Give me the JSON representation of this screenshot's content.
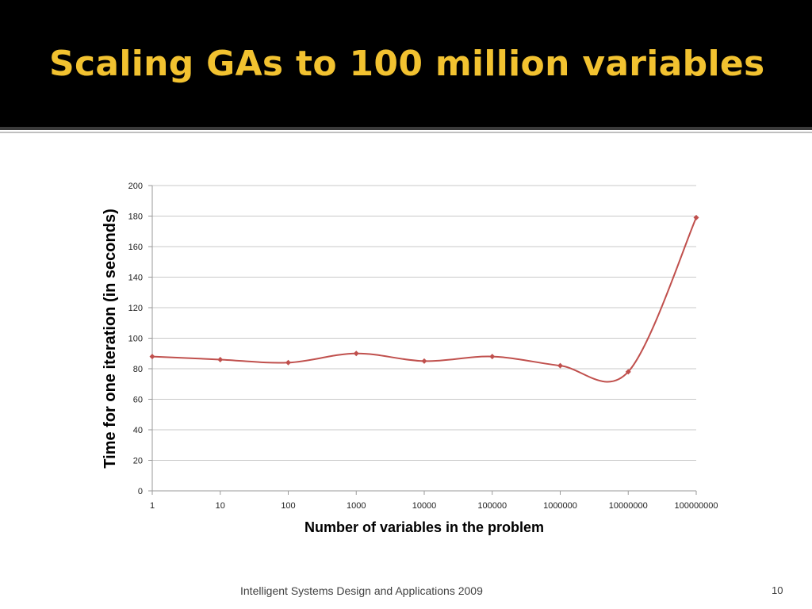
{
  "slide": {
    "title": "Scaling GAs to 100 million variables",
    "footer": "Intelligent Systems Design and Applications 2009",
    "page_number": "10"
  },
  "colors": {
    "title_band": "#000000",
    "title_text": "#f2c230",
    "series": "#c0504d",
    "gridline": "#c8c8c8"
  },
  "chart_data": {
    "type": "line",
    "title": "",
    "xlabel": "Number of variables in the problem",
    "ylabel": "Time for one iteration (in seconds)",
    "categories": [
      "1",
      "10",
      "100",
      "1000",
      "10000",
      "100000",
      "1000000",
      "10000000",
      "100000000"
    ],
    "yticks": [
      "0",
      "20",
      "40",
      "60",
      "80",
      "100",
      "120",
      "140",
      "160",
      "180",
      "200"
    ],
    "ylim": [
      0,
      200
    ],
    "grid": true,
    "legend": "none",
    "smoothed": true,
    "marker": "diamond",
    "series": [
      {
        "values": [
          88,
          86,
          84,
          90,
          85,
          88,
          82,
          78,
          179
        ]
      }
    ]
  }
}
